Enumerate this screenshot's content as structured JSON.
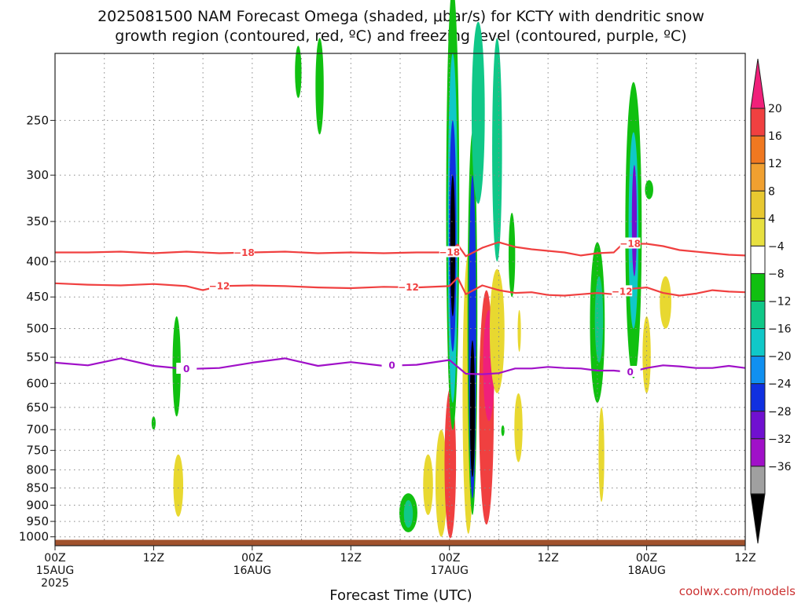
{
  "chart_data": {
    "type": "heatmap",
    "title_line1": "2025081500 NAM Forecast Omega (shaded, μbar/s) for KCTY with dendritic snow",
    "title_line2": "growth region (contoured, red, ºC) and freezing level (contoured, purple, ºC)",
    "xlabel": "Forecast Time (UTC)",
    "ylabel": "",
    "x_ticks": [
      {
        "hour": 0,
        "top": "00Z",
        "line2": "15AUG",
        "line3": "2025"
      },
      {
        "hour": 12,
        "top": "12Z",
        "line2": "",
        "line3": ""
      },
      {
        "hour": 24,
        "top": "00Z",
        "line2": "16AUG",
        "line3": ""
      },
      {
        "hour": 36,
        "top": "12Z",
        "line2": "",
        "line3": ""
      },
      {
        "hour": 48,
        "top": "00Z",
        "line2": "17AUG",
        "line3": ""
      },
      {
        "hour": 60,
        "top": "12Z",
        "line2": "",
        "line3": ""
      },
      {
        "hour": 72,
        "top": "00Z",
        "line2": "18AUG",
        "line3": ""
      },
      {
        "hour": 84,
        "top": "12Z",
        "line2": "",
        "line3": ""
      }
    ],
    "xlim": [
      0,
      84
    ],
    "y_ticks": [
      250,
      300,
      350,
      400,
      450,
      500,
      550,
      600,
      650,
      700,
      750,
      800,
      850,
      900,
      950,
      1000
    ],
    "ylim": [
      1030,
      200
    ],
    "y_scale": "log-pressure",
    "grid": true,
    "colorbar": {
      "labels": [
        "20",
        "16",
        "12",
        "8",
        "4",
        "−4",
        "−8",
        "−12",
        "−16",
        "−20",
        "−24",
        "−28",
        "−32",
        "−36"
      ],
      "colors_top_to_bottom": [
        "#f0207a",
        "#f04040",
        "#f07820",
        "#f0a030",
        "#e8c830",
        "#e8e040",
        "#ffffff",
        "#10c010",
        "#10c888",
        "#10c8c8",
        "#1090f0",
        "#1030e0",
        "#7010d0",
        "#a010c8",
        "#a0a0a0",
        "#000000"
      ]
    },
    "dgz_contours": [
      {
        "label": "−18",
        "color": "#f04040",
        "x": [
          0,
          4,
          8,
          12,
          16,
          20,
          24,
          28,
          32,
          36,
          40,
          44,
          48,
          49,
          50,
          52,
          54,
          56,
          58,
          60,
          62,
          64,
          66,
          68,
          69,
          70,
          72,
          74,
          76,
          78,
          80,
          82,
          84
        ],
        "p": [
          388,
          388,
          387,
          389,
          387,
          389,
          388,
          387,
          389,
          388,
          389,
          388,
          388,
          378,
          393,
          382,
          375,
          381,
          384,
          386,
          388,
          392,
          389,
          388,
          378,
          377,
          377,
          380,
          385,
          387,
          389,
          391,
          392
        ],
        "labels_at": [
          23,
          48,
          70
        ]
      },
      {
        "label": "−12",
        "color": "#f04040",
        "x": [
          0,
          4,
          8,
          12,
          16,
          18,
          20,
          24,
          28,
          32,
          36,
          40,
          44,
          48,
          49,
          50,
          52,
          54,
          56,
          58,
          60,
          62,
          64,
          66,
          68,
          70,
          72,
          74,
          76,
          78,
          80,
          82,
          84
        ],
        "p": [
          430,
          432,
          433,
          431,
          434,
          440,
          434,
          433,
          434,
          436,
          437,
          435,
          436,
          434,
          422,
          446,
          433,
          440,
          444,
          443,
          447,
          448,
          446,
          444,
          446,
          438,
          436,
          444,
          448,
          445,
          440,
          442,
          443
        ],
        "labels_at": [
          20,
          43,
          69
        ]
      }
    ],
    "freezing_level": {
      "label": "0",
      "color": "#a010c8",
      "x": [
        0,
        4,
        8,
        12,
        16,
        20,
        24,
        28,
        32,
        36,
        40,
        44,
        48,
        50,
        52,
        54,
        56,
        58,
        60,
        62,
        64,
        66,
        68,
        70,
        72,
        74,
        76,
        78,
        80,
        82,
        84
      ],
      "p": [
        560,
        565,
        552,
        566,
        572,
        570,
        560,
        552,
        566,
        559,
        566,
        564,
        555,
        581,
        582,
        580,
        571,
        571,
        568,
        570,
        571,
        575,
        575,
        578,
        570,
        565,
        567,
        570,
        570,
        566,
        570
      ],
      "labels_at": [
        16,
        41,
        70
      ]
    },
    "omega_regions": [
      {
        "t": 32.2,
        "p0": 190,
        "p1": 262,
        "w": 0.5,
        "value": -6
      },
      {
        "t": 29.6,
        "p0": 195,
        "p1": 232,
        "w": 0.4,
        "value": -6
      },
      {
        "t": 14.8,
        "p0": 480,
        "p1": 670,
        "w": 0.5,
        "value": -6
      },
      {
        "t": 12.0,
        "p0": 670,
        "p1": 700,
        "w": 0.25,
        "value": -6
      },
      {
        "t": 15.0,
        "p0": 760,
        "p1": 935,
        "w": 0.6,
        "value": 6
      },
      {
        "t": 43.0,
        "p0": 865,
        "p1": 985,
        "w": 1.1,
        "value": -6
      },
      {
        "t": 43.0,
        "p0": 885,
        "p1": 970,
        "w": 0.55,
        "value": -10
      },
      {
        "t": 45.4,
        "p0": 760,
        "p1": 930,
        "w": 0.6,
        "value": 6
      },
      {
        "t": 47.0,
        "p0": 700,
        "p1": 1000,
        "w": 0.7,
        "value": 6
      },
      {
        "t": 48.1,
        "p0": 610,
        "p1": 1005,
        "w": 0.7,
        "value": 16
      },
      {
        "t": 48.4,
        "p0": 160,
        "p1": 700,
        "w": 0.8,
        "value": -6
      },
      {
        "t": 48.4,
        "p0": 200,
        "p1": 640,
        "w": 0.6,
        "value": -12
      },
      {
        "t": 48.4,
        "p0": 250,
        "p1": 540,
        "w": 0.45,
        "value": -22
      },
      {
        "t": 48.4,
        "p0": 300,
        "p1": 480,
        "w": 0.3,
        "value": -36
      },
      {
        "t": 50.3,
        "p0": 390,
        "p1": 990,
        "w": 0.7,
        "value": 6
      },
      {
        "t": 50.8,
        "p0": 260,
        "p1": 930,
        "w": 0.6,
        "value": -6
      },
      {
        "t": 50.8,
        "p0": 300,
        "p1": 880,
        "w": 0.45,
        "value": -20
      },
      {
        "t": 50.8,
        "p0": 520,
        "p1": 820,
        "w": 0.3,
        "value": -36
      },
      {
        "t": 52.5,
        "p0": 440,
        "p1": 960,
        "w": 0.9,
        "value": 16
      },
      {
        "t": 52.8,
        "p0": 470,
        "p1": 680,
        "w": 0.7,
        "value": 22
      },
      {
        "t": 51.5,
        "p0": 180,
        "p1": 330,
        "w": 0.8,
        "value": -8
      },
      {
        "t": 53.8,
        "p0": 190,
        "p1": 400,
        "w": 0.6,
        "value": -10
      },
      {
        "t": 55.6,
        "p0": 340,
        "p1": 450,
        "w": 0.4,
        "value": -6
      },
      {
        "t": 53.8,
        "p0": 410,
        "p1": 620,
        "w": 0.9,
        "value": 6
      },
      {
        "t": 56.5,
        "p0": 470,
        "p1": 540,
        "w": 0.2,
        "value": 6
      },
      {
        "t": 56.4,
        "p0": 620,
        "p1": 780,
        "w": 0.5,
        "value": 6
      },
      {
        "t": 54.5,
        "p0": 690,
        "p1": 715,
        "w": 0.2,
        "value": -6
      },
      {
        "t": 66.0,
        "p0": 375,
        "p1": 640,
        "w": 0.9,
        "value": -6
      },
      {
        "t": 66.2,
        "p0": 420,
        "p1": 560,
        "w": 0.5,
        "value": -10
      },
      {
        "t": 66.5,
        "p0": 650,
        "p1": 890,
        "w": 0.35,
        "value": 6
      },
      {
        "t": 70.4,
        "p0": 220,
        "p1": 590,
        "w": 1.0,
        "value": -6
      },
      {
        "t": 70.4,
        "p0": 260,
        "p1": 500,
        "w": 0.6,
        "value": -12
      },
      {
        "t": 70.5,
        "p0": 290,
        "p1": 420,
        "w": 0.3,
        "value": -24
      },
      {
        "t": 72.3,
        "p0": 305,
        "p1": 325,
        "w": 0.5,
        "value": -6
      },
      {
        "t": 72.0,
        "p0": 480,
        "p1": 620,
        "w": 0.5,
        "value": 6
      },
      {
        "t": 74.3,
        "p0": 420,
        "p1": 500,
        "w": 0.7,
        "value": 6
      }
    ]
  },
  "footer": {
    "credit": "coolwx.com/models"
  },
  "colors": {
    "ground": "#a0522d",
    "grid": "#888888",
    "credit": "#cc3333"
  }
}
